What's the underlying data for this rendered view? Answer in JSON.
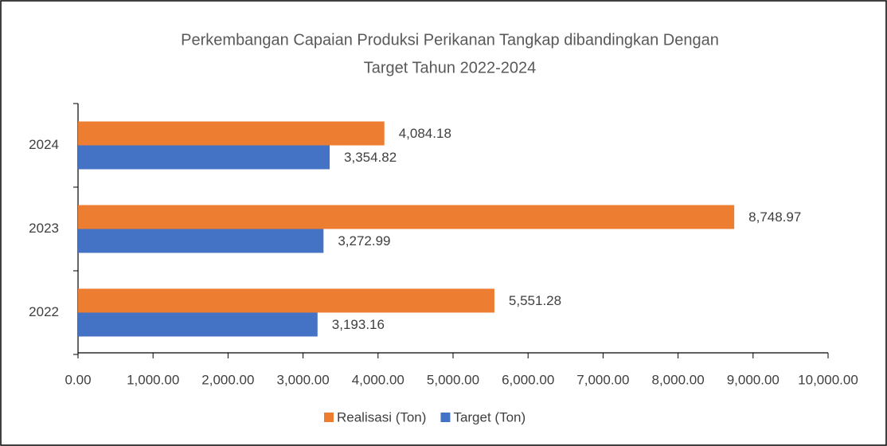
{
  "chart_data": {
    "type": "hbar",
    "title": [
      "Perkembangan Capaian Produksi Perikanan Tangkap dibandingkan Dengan",
      "Target Tahun 2022-2024"
    ],
    "categories": [
      "2022",
      "2023",
      "2024"
    ],
    "series": [
      {
        "name": "Realisasi (Ton)",
        "color": "#ED7D31",
        "values": [
          5551.28,
          8748.97,
          4084.18
        ],
        "value_labels": [
          "5,551.28",
          "8,748.97",
          "4,084.18"
        ]
      },
      {
        "name": "Target (Ton)",
        "color": "#4472C4",
        "values": [
          3193.16,
          3272.99,
          3354.82
        ],
        "value_labels": [
          "3,193.16",
          "3,272.99",
          "3,354.82"
        ]
      }
    ],
    "xlim": [
      0,
      10000
    ],
    "xticks": [
      {
        "value": 0,
        "label": "0.00"
      },
      {
        "value": 1000,
        "label": "1,000.00"
      },
      {
        "value": 2000,
        "label": "2,000.00"
      },
      {
        "value": 3000,
        "label": "3,000.00"
      },
      {
        "value": 4000,
        "label": "4,000.00"
      },
      {
        "value": 5000,
        "label": "5,000.00"
      },
      {
        "value": 6000,
        "label": "6,000.00"
      },
      {
        "value": 7000,
        "label": "7,000.00"
      },
      {
        "value": 8000,
        "label": "8,000.00"
      },
      {
        "value": 9000,
        "label": "9,000.00"
      },
      {
        "value": 10000,
        "label": "10,000.00"
      }
    ],
    "legend": "bottom"
  }
}
